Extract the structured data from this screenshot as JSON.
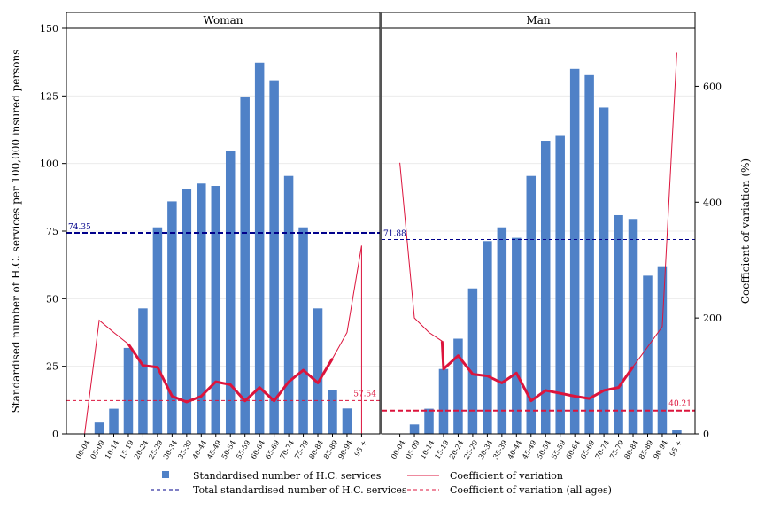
{
  "chart_data": {
    "type": "bar",
    "panels": [
      "Woman",
      "Man"
    ],
    "categories": [
      "00-04",
      "05-09",
      "10-14",
      "15-19",
      "20-24",
      "25-29",
      "30-34",
      "35-39",
      "40-44",
      "45-49",
      "50-54",
      "55-59",
      "60-64",
      "65-69",
      "70-74",
      "75-79",
      "80-84",
      "85-89",
      "90-94",
      "95 +"
    ],
    "ylabel_left": "Standardised number of H.C. services per 100,000 insured persons",
    "ylabel_right": "Coefficient of variation (%)",
    "ylim_left": [
      0,
      150
    ],
    "ylim_right": [
      0,
      700
    ],
    "yticks_left": [
      0,
      25,
      50,
      75,
      100,
      125,
      150
    ],
    "yticks_right": [
      0,
      200,
      400,
      600
    ],
    "colors": {
      "bars": "#4f81c7",
      "total_line": "#00008b",
      "cv_line": "#dc143c",
      "cv_all_line": "#dc143c"
    },
    "series": {
      "Woman": {
        "bars": [
          0,
          4.2,
          9.3,
          31.8,
          46.4,
          76.4,
          86.0,
          90.6,
          92.6,
          91.7,
          104.6,
          124.8,
          137.3,
          130.8,
          95.4,
          76.4,
          46.4,
          16.2,
          9.4,
          0
        ],
        "cv": [
          null,
          196,
          175,
          155,
          118,
          115,
          65,
          55,
          65,
          90,
          85,
          57,
          80,
          57,
          90,
          110,
          88,
          130,
          175,
          325
        ],
        "cv_bold_from": 3,
        "cv_bold_to": 17,
        "total": 74.35,
        "total_label": "74.35",
        "cv_all": 57.54,
        "cv_all_label": "57.54"
      },
      "Man": {
        "bars": [
          0,
          3.5,
          9.3,
          24.0,
          35.2,
          53.8,
          71.3,
          76.4,
          72.5,
          95.4,
          108.4,
          110.2,
          135.0,
          132.7,
          120.7,
          80.9,
          79.5,
          58.5,
          62.0,
          1.3
        ],
        "cv": [
          468,
          200,
          175,
          160,
          112,
          135,
          103,
          100,
          88,
          105,
          57,
          75,
          70,
          65,
          61,
          75,
          80,
          116,
          150,
          185,
          658
        ],
        "cv_x": [
          0,
          1,
          2,
          2.9,
          3,
          4,
          5,
          6,
          7,
          8,
          9,
          10,
          11,
          12,
          13,
          14,
          15,
          16,
          17,
          18,
          19
        ],
        "cv_bold_from": 2.9,
        "cv_bold_to": 16,
        "total": 71.88,
        "total_label": "71.88",
        "cv_all": 40.21,
        "cv_all_label": "40.21"
      }
    },
    "legend": [
      {
        "key": "bars",
        "label": "Standardised number of H.C. services"
      },
      {
        "key": "cv_line",
        "label": "Coefficient of variation"
      },
      {
        "key": "total_line",
        "label": "Total standardised number of H.C. services"
      },
      {
        "key": "cv_all_line",
        "label": "Coefficient of variation (all ages)"
      }
    ],
    "legend_position": "bottom",
    "grid": true
  }
}
